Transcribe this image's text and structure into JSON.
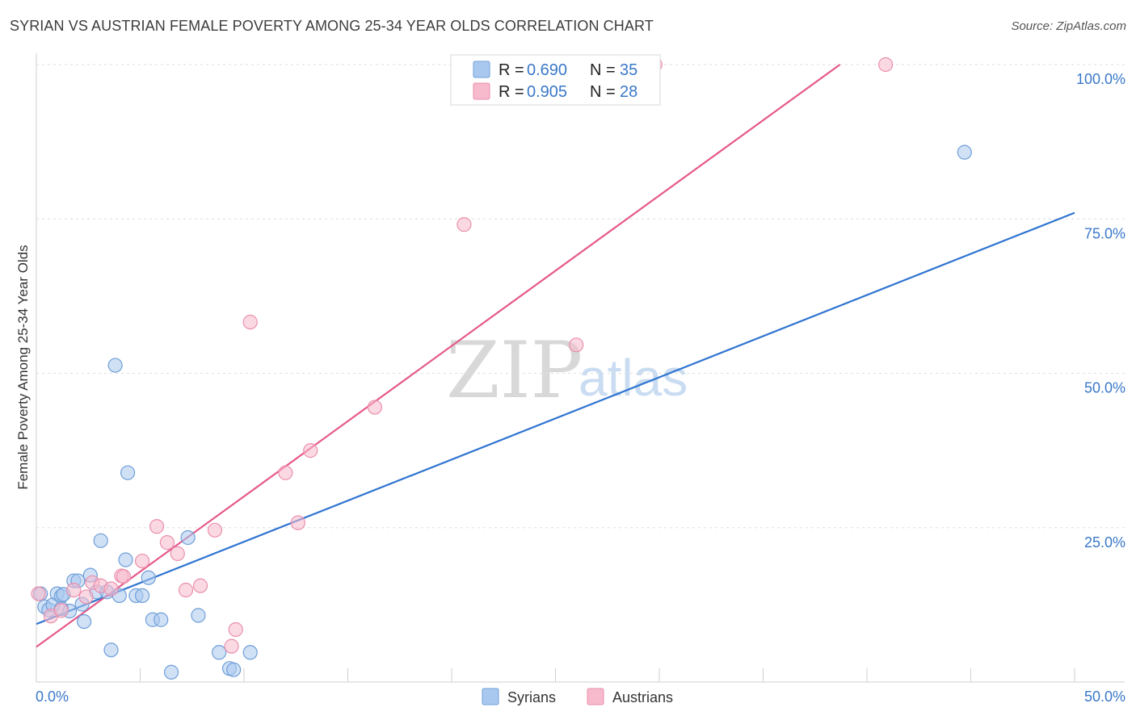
{
  "title": "SYRIAN VS AUSTRIAN FEMALE POVERTY AMONG 25-34 YEAR OLDS CORRELATION CHART",
  "source": "Source: ZipAtlas.com",
  "watermark": {
    "zip": "ZIP",
    "atlas": "atlas"
  },
  "chart_data": {
    "type": "scatter",
    "title": "SYRIAN VS AUSTRIAN FEMALE POVERTY AMONG 25-34 YEAR OLDS CORRELATION CHART",
    "xlabel": "",
    "ylabel": "Female Poverty Among 25-34 Year Olds",
    "xlim": [
      0,
      50
    ],
    "ylim": [
      0,
      100
    ],
    "x_tick_labels": {
      "min": "0.0%",
      "max": "50.0%"
    },
    "y_ticks": [
      {
        "value": 100,
        "label": "100.0%"
      },
      {
        "value": 75,
        "label": "75.0%"
      },
      {
        "value": 50,
        "label": "50.0%"
      },
      {
        "value": 25,
        "label": "25.0%"
      }
    ],
    "grid": true,
    "legend": {
      "position": "top-center",
      "entries": [
        {
          "series": "Syrians",
          "r_label": "R =",
          "r_value": "0.690",
          "n_label": "N =",
          "n_value": "35"
        },
        {
          "series": "Austrians",
          "r_label": "R =",
          "r_value": "0.905",
          "n_label": "N =",
          "n_value": "28"
        }
      ]
    },
    "series": [
      {
        "name": "Syrians",
        "color": "#a9c8ef",
        "stroke": "#6f9fd8",
        "line_color": "#2f74d0",
        "trend": {
          "x0": 0,
          "y0": 9.4,
          "x1": 50,
          "y1": 76
        },
        "points": [
          [
            0.2,
            14.3
          ],
          [
            0.4,
            12.2
          ],
          [
            0.6,
            11.7
          ],
          [
            0.8,
            12.5
          ],
          [
            1.0,
            14.3
          ],
          [
            1.2,
            13.9
          ],
          [
            1.3,
            14.2
          ],
          [
            1.6,
            11.5
          ],
          [
            1.8,
            16.4
          ],
          [
            2.0,
            16.4
          ],
          [
            2.2,
            12.6
          ],
          [
            2.3,
            9.8
          ],
          [
            2.6,
            17.3
          ],
          [
            2.9,
            14.6
          ],
          [
            3.1,
            22.9
          ],
          [
            3.4,
            14.6
          ],
          [
            3.6,
            5.2
          ],
          [
            3.8,
            51.3
          ],
          [
            4.0,
            14.0
          ],
          [
            4.3,
            19.8
          ],
          [
            4.4,
            33.9
          ],
          [
            4.8,
            14.0
          ],
          [
            5.1,
            14.0
          ],
          [
            5.4,
            16.9
          ],
          [
            5.6,
            10.1
          ],
          [
            6.0,
            10.1
          ],
          [
            6.5,
            1.6
          ],
          [
            7.3,
            23.4
          ],
          [
            7.8,
            10.8
          ],
          [
            8.8,
            4.8
          ],
          [
            9.3,
            2.2
          ],
          [
            9.5,
            2.0
          ],
          [
            10.3,
            4.8
          ],
          [
            44.7,
            85.8
          ],
          [
            1.2,
            11.9
          ]
        ]
      },
      {
        "name": "Austrians",
        "color": "#f7b9cc",
        "stroke": "#ea8fad",
        "line_color": "#e5588a",
        "trend": {
          "x0": 0,
          "y0": 5.7,
          "x1": 38.7,
          "y1": 100
        },
        "points": [
          [
            0.1,
            14.3
          ],
          [
            0.7,
            10.7
          ],
          [
            1.2,
            11.6
          ],
          [
            1.8,
            14.9
          ],
          [
            2.4,
            13.8
          ],
          [
            2.7,
            16.1
          ],
          [
            3.1,
            15.6
          ],
          [
            3.6,
            15.1
          ],
          [
            4.1,
            17.2
          ],
          [
            4.2,
            17.1
          ],
          [
            5.1,
            19.6
          ],
          [
            5.8,
            25.2
          ],
          [
            6.3,
            22.6
          ],
          [
            6.8,
            20.8
          ],
          [
            7.2,
            14.9
          ],
          [
            7.9,
            15.6
          ],
          [
            8.6,
            24.6
          ],
          [
            9.4,
            5.8
          ],
          [
            9.6,
            8.5
          ],
          [
            10.3,
            58.3
          ],
          [
            12.0,
            33.9
          ],
          [
            12.6,
            25.8
          ],
          [
            13.2,
            37.5
          ],
          [
            16.3,
            44.5
          ],
          [
            20.6,
            74.1
          ],
          [
            26.0,
            54.6
          ],
          [
            29.8,
            100.0
          ],
          [
            40.9,
            100.0
          ]
        ]
      }
    ]
  }
}
